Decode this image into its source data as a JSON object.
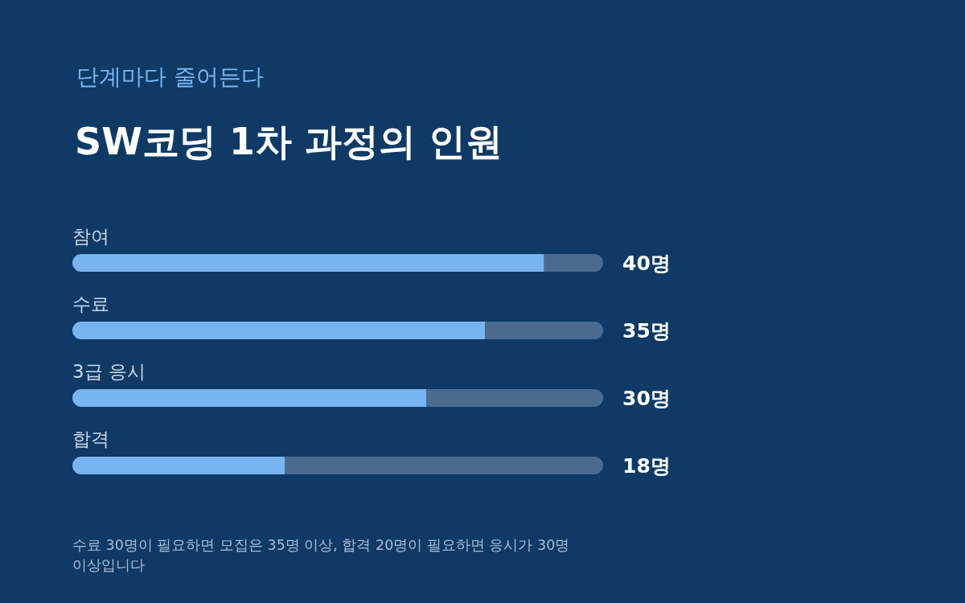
{
  "chart_data": {
    "type": "bar",
    "orientation": "horizontal",
    "subtitle": "단계마다 줄어든다",
    "title": "SW코딩 1차 과정의 인원",
    "categories": [
      "참여",
      "수료",
      "3급 응시",
      "합격"
    ],
    "series": [
      {
        "color": "#78b4f0",
        "values": [
          40,
          35,
          30,
          18
        ],
        "value_labels": [
          "40명",
          "35명",
          "30명",
          "18명"
        ]
      },
      {
        "color": "#4a6b90",
        "values": [
          5,
          10,
          15,
          27
        ]
      }
    ],
    "stacked": true,
    "xlim": [
      0,
      45
    ],
    "annotations": [
      "수료 30명이 필요하면 모집은 35명 이상, 합격 20명이 필요하면 응시가 30명 이상입니다"
    ]
  }
}
